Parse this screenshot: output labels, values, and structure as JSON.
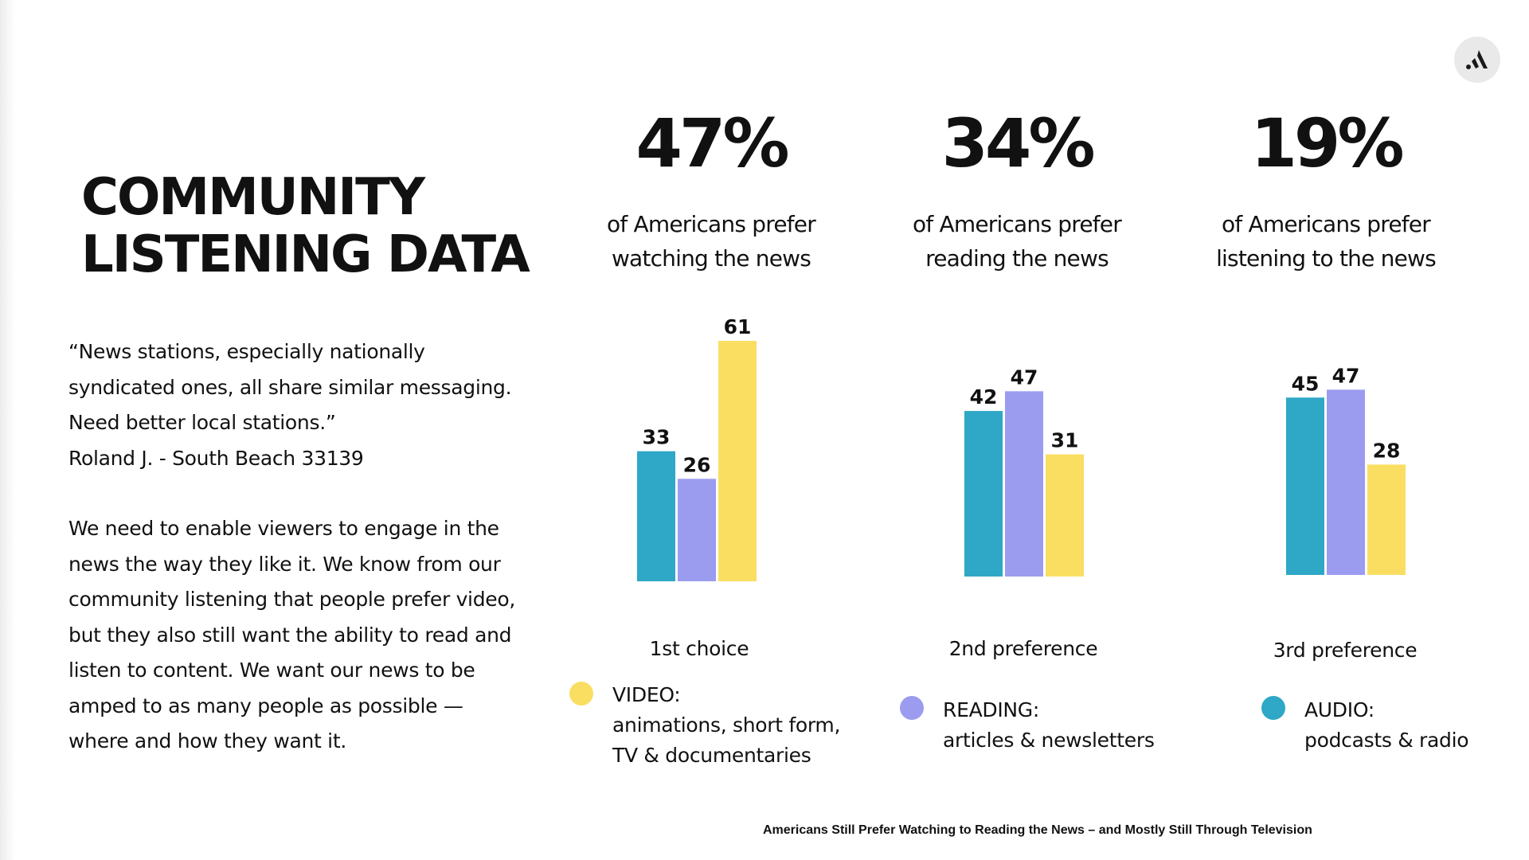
{
  "slide": {
    "title_lines": [
      "COMMUNITY",
      "LISTENING DATA"
    ],
    "quote_lines": [
      "“News stations, especially nationally",
      "syndicated ones, all share similar messaging.",
      "Need better local stations.”",
      "Roland J. - South Beach 33139"
    ],
    "body_lines": [
      "We need to enable viewers to engage in the",
      "news the way they like it. We know from our",
      "community listening that people prefer video,",
      "but they also still want the ability to read and",
      "listen to content. We want our news to be",
      "amped to as many people as possible —",
      "where and how they want it."
    ],
    "source": "Americans Still Prefer Watching to Reading the News – and Mostly Still Through Television",
    "logo_icon": "brand-logo-icon",
    "colors": {
      "audio": "#2fa7c6",
      "reading": "#9b9cf0",
      "video": "#fade62",
      "text": "#111111"
    }
  },
  "stats": [
    {
      "percent": "47%",
      "caption_lines": [
        "of Americans prefer",
        "watching the news"
      ]
    },
    {
      "percent": "34%",
      "caption_lines": [
        "of Americans prefer",
        "reading the news"
      ]
    },
    {
      "percent": "19%",
      "caption_lines": [
        "of Americans prefer",
        "listening to the news"
      ]
    }
  ],
  "legend": [
    {
      "color": "#fade62",
      "lines": [
        "VIDEO:",
        "animations, short form,",
        "TV & documentaries"
      ]
    },
    {
      "color": "#9b9cf0",
      "lines": [
        "READING:",
        "articles & newsletters"
      ]
    },
    {
      "color": "#2fa7c6",
      "lines": [
        "AUDIO:",
        "podcasts & radio"
      ]
    }
  ],
  "chart_data": [
    {
      "type": "bar",
      "categories": [
        "Audio",
        "Reading",
        "Video"
      ],
      "values": [
        33,
        26,
        61
      ],
      "colors": [
        "#2fa7c6",
        "#9b9cf0",
        "#fade62"
      ],
      "xlabel": "1st choice",
      "ylim": [
        0,
        61
      ]
    },
    {
      "type": "bar",
      "categories": [
        "Audio",
        "Reading",
        "Video"
      ],
      "values": [
        42,
        47,
        31
      ],
      "colors": [
        "#2fa7c6",
        "#9b9cf0",
        "#fade62"
      ],
      "xlabel": "2nd preference",
      "ylim": [
        0,
        61
      ]
    },
    {
      "type": "bar",
      "categories": [
        "Audio",
        "Reading",
        "Video"
      ],
      "values": [
        45,
        47,
        28
      ],
      "colors": [
        "#2fa7c6",
        "#9b9cf0",
        "#fade62"
      ],
      "xlabel": "3rd preference",
      "ylim": [
        0,
        61
      ]
    }
  ]
}
